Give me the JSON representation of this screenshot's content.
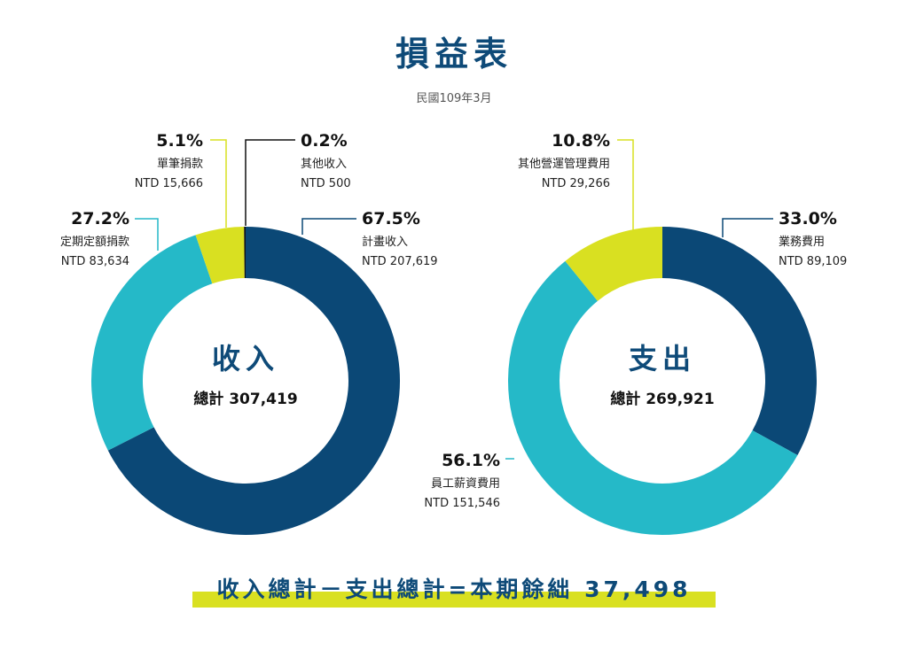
{
  "title": "損益表",
  "subtitle": "民國109年3月",
  "colors": {
    "navy": "#0b4876",
    "teal": "#25b9c8",
    "lime": "#d9e021",
    "black": "#111111"
  },
  "chart_data": [
    {
      "type": "pie",
      "center_title": "收入",
      "center_total": "總計 307,419",
      "total": 307419,
      "slices": [
        {
          "pct": "67.5%",
          "name": "計畫收入",
          "amount": "NTD 207,619",
          "value": 207619,
          "color": "navy"
        },
        {
          "pct": "27.2%",
          "name": "定期定額捐款",
          "amount": "NTD 83,634",
          "value": 83634,
          "color": "teal"
        },
        {
          "pct": "5.1%",
          "name": "單筆捐款",
          "amount": "NTD 15,666",
          "value": 15666,
          "color": "lime"
        },
        {
          "pct": "0.2%",
          "name": "其他收入",
          "amount": "NTD 500",
          "value": 500,
          "color": "black"
        }
      ]
    },
    {
      "type": "pie",
      "center_title": "支出",
      "center_total": "總計 269,921",
      "total": 269921,
      "slices": [
        {
          "pct": "33.0%",
          "name": "業務費用",
          "amount": "NTD 89,109",
          "value": 89109,
          "color": "navy"
        },
        {
          "pct": "56.1%",
          "name": "員工薪資費用",
          "amount": "NTD 151,546",
          "value": 151546,
          "color": "teal"
        },
        {
          "pct": "10.8%",
          "name": "其他營運管理費用",
          "amount": "NTD 29,266",
          "value": 29266,
          "color": "lime"
        }
      ]
    }
  ],
  "bottom_text": "收入總計－支出總計=本期餘絀 37,498"
}
